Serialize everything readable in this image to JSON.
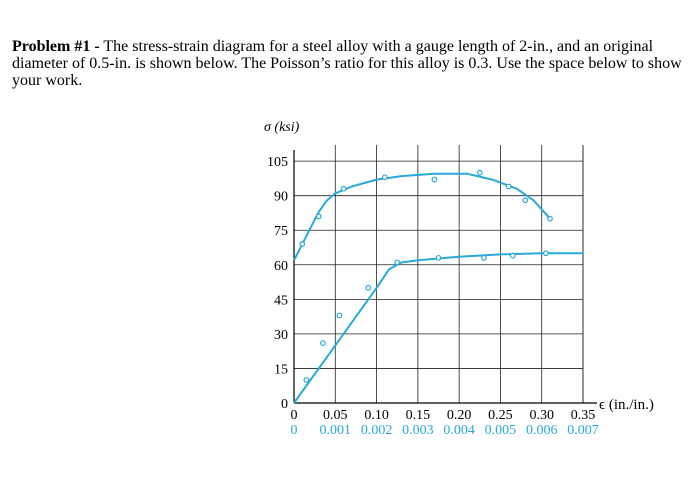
{
  "problem": {
    "heading": "Problem #1 -",
    "text": " The stress-strain diagram for a steel alloy with a gauge length of 2-in., and an original diameter of 0.5-in. is shown below.  The Poisson’s ratio for this alloy is 0.3.  Use the space below to show your work."
  },
  "chart_data": {
    "type": "line",
    "ylabel": "σ (ksi)",
    "xlabel": "ϵ (in./in.)",
    "y_ticks": [
      "105",
      "90",
      "75",
      "60",
      "45",
      "30",
      "15",
      "0"
    ],
    "y_tick_values": [
      105,
      90,
      75,
      60,
      45,
      30,
      15,
      0
    ],
    "ylim": [
      0,
      112
    ],
    "x_ticks_top": [
      "0",
      "0.05",
      "0.10",
      "0.15",
      "0.20",
      "0.25",
      "0.30",
      "0.35"
    ],
    "x_ticks_top_values": [
      0,
      0.05,
      0.1,
      0.15,
      0.2,
      0.25,
      0.3,
      0.35
    ],
    "x_ticks_bottom": [
      "0",
      "0.001",
      "0.002",
      "0.003",
      "0.004",
      "0.005",
      "0.006",
      "0.007"
    ],
    "x_ticks_bottom_values": [
      0,
      0.001,
      0.002,
      0.003,
      0.004,
      0.005,
      0.006,
      0.007
    ],
    "xlim_top": [
      0,
      0.35
    ],
    "xlim_bottom": [
      0,
      0.007
    ],
    "grid": true,
    "colors": {
      "curve": "#29a9d8",
      "bottom_axis_text": "#29a9d8",
      "grid": "#222222"
    },
    "series": [
      {
        "axis": "top",
        "curve": [
          [
            0,
            62
          ],
          [
            0.01,
            69
          ],
          [
            0.02,
            76
          ],
          [
            0.03,
            83
          ],
          [
            0.04,
            88
          ],
          [
            0.05,
            91
          ],
          [
            0.07,
            94
          ],
          [
            0.1,
            97
          ],
          [
            0.13,
            98.5
          ],
          [
            0.17,
            99.5
          ],
          [
            0.21,
            99.5
          ],
          [
            0.24,
            97
          ],
          [
            0.27,
            93
          ],
          [
            0.29,
            88
          ],
          [
            0.31,
            80
          ]
        ],
        "points": [
          [
            0.01,
            69
          ],
          [
            0.03,
            81
          ],
          [
            0.06,
            93
          ],
          [
            0.11,
            98
          ],
          [
            0.17,
            97
          ],
          [
            0.225,
            100
          ],
          [
            0.26,
            94
          ],
          [
            0.28,
            88
          ],
          [
            0.31,
            80
          ]
        ]
      },
      {
        "axis": "bottom",
        "curve": [
          [
            0,
            0
          ],
          [
            0.001,
            25
          ],
          [
            0.002,
            50
          ],
          [
            0.0023,
            58
          ],
          [
            0.0026,
            61
          ],
          [
            0.003,
            62
          ],
          [
            0.004,
            63.5
          ],
          [
            0.005,
            64.5
          ],
          [
            0.006,
            65
          ],
          [
            0.007,
            65
          ]
        ],
        "points": [
          [
            0.0003,
            10
          ],
          [
            0.0007,
            26
          ],
          [
            0.0011,
            38
          ],
          [
            0.0018,
            50
          ],
          [
            0.0025,
            61
          ],
          [
            0.0035,
            63
          ],
          [
            0.0046,
            63
          ],
          [
            0.0053,
            64
          ],
          [
            0.0061,
            65
          ]
        ]
      }
    ]
  }
}
